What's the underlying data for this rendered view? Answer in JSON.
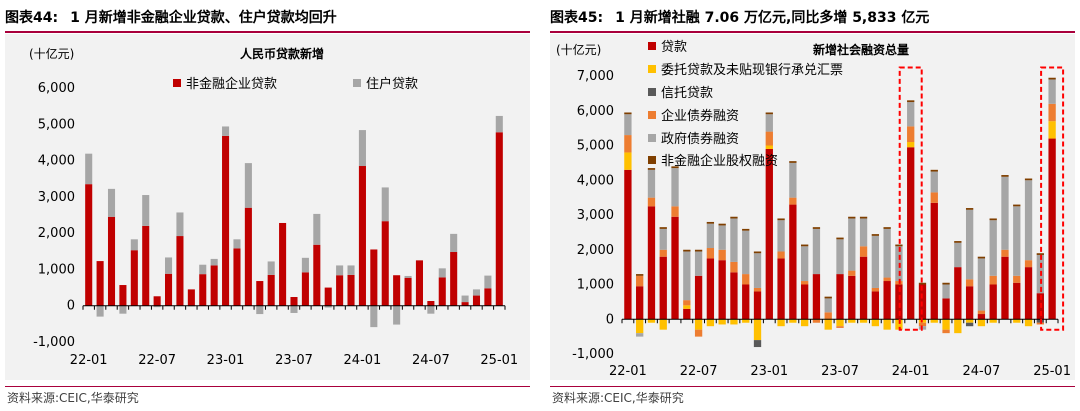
{
  "left": {
    "figure_label": "图表44:",
    "figure_title": "1 月新增非金融企业贷款、住户贷款均回升",
    "source": "资料来源:CEIC,华泰研究",
    "colors": {
      "series1": "#c00000",
      "series2": "#a6a6a6"
    },
    "chart_data": {
      "type": "bar",
      "stacked": true,
      "title": "人民币贷款新增",
      "unit": "(十亿元)",
      "ylim": [
        -1000,
        6000
      ],
      "yticks": [
        -1000,
        0,
        1000,
        2000,
        3000,
        4000,
        5000,
        6000
      ],
      "ytick_labels": [
        "-1,000",
        "0",
        "1,000",
        "2,000",
        "3,000",
        "4,000",
        "5,000",
        "6,000"
      ],
      "xtick_labels": [
        "22-01",
        "22-07",
        "23-01",
        "23-07",
        "24-01",
        "24-07",
        "25-01"
      ],
      "xtick_index": [
        0,
        6,
        12,
        18,
        24,
        30,
        36
      ],
      "legend_position": "top",
      "categories": [
        "22-01",
        "22-02",
        "22-03",
        "22-04",
        "22-05",
        "22-06",
        "22-07",
        "22-08",
        "22-09",
        "22-10",
        "22-11",
        "22-12",
        "23-01",
        "23-02",
        "23-03",
        "23-04",
        "23-05",
        "23-06",
        "23-07",
        "23-08",
        "23-09",
        "23-10",
        "23-11",
        "23-12",
        "24-01",
        "24-02",
        "24-03",
        "24-04",
        "24-05",
        "24-06",
        "24-07",
        "24-08",
        "24-09",
        "24-10",
        "24-11",
        "24-12",
        "25-01"
      ],
      "series": [
        {
          "name": "非金融企业贷款",
          "values": [
            3350,
            1230,
            2450,
            570,
            1530,
            2200,
            260,
            880,
            1920,
            450,
            870,
            1110,
            4680,
            1580,
            2700,
            680,
            850,
            2280,
            240,
            920,
            1680,
            500,
            840,
            850,
            3850,
            1550,
            2330,
            840,
            770,
            1250,
            130,
            780,
            1480,
            100,
            280,
            480,
            4780
          ]
        },
        {
          "name": "住户贷款",
          "values": [
            840,
            -300,
            770,
            -220,
            300,
            850,
            -40,
            450,
            650,
            -20,
            260,
            180,
            260,
            250,
            1230,
            -230,
            370,
            0,
            -200,
            400,
            850,
            -50,
            270,
            260,
            990,
            -590,
            930,
            -520,
            50,
            0,
            -220,
            250,
            500,
            180,
            170,
            350,
            450
          ]
        }
      ]
    }
  },
  "right": {
    "figure_label": "图表45:",
    "figure_title": "1 月新增社融 7.06 万亿元,同比多增 5,833 亿元",
    "source": "资料来源:CEIC,华泰研究",
    "colors": {
      "s1": "#c00000",
      "s2": "#ffc000",
      "s3": "#595959",
      "s4": "#ed7d31",
      "s5": "#a6a6a6",
      "s6": "#7f3f00",
      "highlight": "#ff0000"
    },
    "chart_data": {
      "type": "bar",
      "stacked": true,
      "title": "新增社会融资总量",
      "unit": "(十亿元)",
      "ylim": [
        -1000,
        7000
      ],
      "yticks": [
        -1000,
        0,
        1000,
        2000,
        3000,
        4000,
        5000,
        6000,
        7000
      ],
      "ytick_labels": [
        "-1,000",
        "0",
        "1,000",
        "2,000",
        "3,000",
        "4,000",
        "5,000",
        "6,000",
        "7,000"
      ],
      "xtick_labels": [
        "22-01",
        "22-07",
        "23-01",
        "23-07",
        "24-01",
        "24-07",
        "25-01"
      ],
      "xtick_index": [
        0,
        6,
        12,
        18,
        24,
        30,
        36
      ],
      "legend_position": "top-left",
      "highlighted_categories": [
        "24-01",
        "25-01"
      ],
      "categories": [
        "22-01",
        "22-02",
        "22-03",
        "22-04",
        "22-05",
        "22-06",
        "22-07",
        "22-08",
        "22-09",
        "22-10",
        "22-11",
        "22-12",
        "23-01",
        "23-02",
        "23-03",
        "23-04",
        "23-05",
        "23-06",
        "23-07",
        "23-08",
        "23-09",
        "23-10",
        "23-11",
        "23-12",
        "24-01",
        "24-02",
        "24-03",
        "24-04",
        "24-05",
        "24-06",
        "24-07",
        "24-08",
        "24-09",
        "24-10",
        "24-11",
        "24-12",
        "25-01"
      ],
      "series": [
        {
          "name": "贷款",
          "values": [
            4300,
            950,
            3250,
            1800,
            2950,
            300,
            1250,
            1750,
            1700,
            1350,
            1000,
            800,
            4900,
            1750,
            3300,
            1000,
            1300,
            0,
            1300,
            1250,
            1800,
            800,
            1100,
            1000,
            4950,
            1000,
            3350,
            600,
            1500,
            950,
            150,
            1000,
            1800,
            1050,
            1500,
            750,
            5200
          ]
        },
        {
          "name": "委托贷款及未贴现银行承兑汇票",
          "values": [
            500,
            -400,
            -100,
            -300,
            0,
            100,
            -300,
            -200,
            -150,
            -150,
            -100,
            -600,
            100,
            -200,
            -100,
            -200,
            0,
            -300,
            -200,
            -100,
            -100,
            -200,
            -300,
            -300,
            150,
            -100,
            -100,
            -300,
            -400,
            -100,
            -200,
            -100,
            0,
            -100,
            -200,
            0,
            500
          ]
        },
        {
          "name": "信托贷款",
          "values": [
            0,
            0,
            0,
            0,
            0,
            0,
            0,
            0,
            0,
            0,
            0,
            -200,
            0,
            0,
            0,
            0,
            0,
            0,
            0,
            0,
            0,
            0,
            0,
            0,
            0,
            0,
            0,
            0,
            0,
            -100,
            0,
            0,
            0,
            0,
            0,
            -100,
            0
          ]
        },
        {
          "name": "企业债券融资",
          "values": [
            500,
            300,
            250,
            200,
            300,
            150,
            -200,
            300,
            300,
            300,
            300,
            100,
            400,
            200,
            200,
            100,
            -100,
            200,
            -50,
            150,
            300,
            100,
            100,
            100,
            450,
            -100,
            300,
            -100,
            0,
            200,
            100,
            250,
            200,
            200,
            200,
            -50,
            500
          ]
        },
        {
          "name": "政府债券融资",
          "values": [
            600,
            -100,
            800,
            600,
            1100,
            1400,
            700,
            700,
            700,
            1250,
            1250,
            1000,
            500,
            900,
            1000,
            1000,
            1300,
            400,
            1000,
            1500,
            800,
            1500,
            1400,
            1000,
            700,
            -100,
            600,
            400,
            700,
            2000,
            1500,
            1600,
            2100,
            2000,
            2300,
            1100,
            700
          ]
        },
        {
          "name": "非金融企业股权融资",
          "values": [
            50,
            50,
            50,
            50,
            50,
            50,
            50,
            50,
            50,
            50,
            50,
            50,
            50,
            50,
            50,
            50,
            50,
            50,
            50,
            50,
            50,
            50,
            50,
            50,
            50,
            50,
            50,
            50,
            50,
            50,
            50,
            50,
            50,
            50,
            50,
            50,
            50
          ]
        }
      ]
    }
  }
}
